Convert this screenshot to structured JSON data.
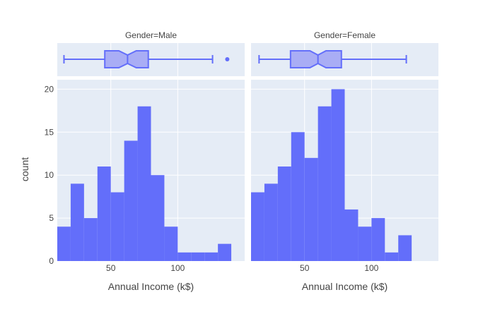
{
  "chart_data": {
    "type": "histogram",
    "ylabel": "count",
    "xlabel": "Annual Income (k$)",
    "x_tick_labels": [
      "50",
      "100"
    ],
    "y_tick_labels": [
      "0",
      "5",
      "10",
      "15",
      "20"
    ],
    "xlim": [
      10,
      150
    ],
    "ylim": [
      0,
      21.1
    ],
    "bin_width": 10,
    "bar_color": "#636efa",
    "box_fill": "#a9adf5",
    "panel_bg": "#e5ecf6",
    "grid": true,
    "facets": [
      {
        "title": "Gender=Male",
        "bins": [
          {
            "x0": 10,
            "x1": 20,
            "count": 4
          },
          {
            "x0": 20,
            "x1": 30,
            "count": 9
          },
          {
            "x0": 30,
            "x1": 40,
            "count": 5
          },
          {
            "x0": 40,
            "x1": 50,
            "count": 11
          },
          {
            "x0": 50,
            "x1": 60,
            "count": 8
          },
          {
            "x0": 60,
            "x1": 70,
            "count": 14
          },
          {
            "x0": 70,
            "x1": 80,
            "count": 18
          },
          {
            "x0": 80,
            "x1": 90,
            "count": 10
          },
          {
            "x0": 90,
            "x1": 100,
            "count": 4
          },
          {
            "x0": 100,
            "x1": 110,
            "count": 1
          },
          {
            "x0": 110,
            "x1": 120,
            "count": 1
          },
          {
            "x0": 120,
            "x1": 130,
            "count": 1
          },
          {
            "x0": 130,
            "x1": 140,
            "count": 2
          }
        ],
        "box": {
          "min": 15,
          "q1": 45.5,
          "median": 62.5,
          "q3": 78,
          "max": 126,
          "notch_low": 56,
          "notch_high": 69,
          "outliers": [
            137
          ]
        }
      },
      {
        "title": "Gender=Female",
        "bins": [
          {
            "x0": 10,
            "x1": 20,
            "count": 8
          },
          {
            "x0": 20,
            "x1": 30,
            "count": 9
          },
          {
            "x0": 30,
            "x1": 40,
            "count": 11
          },
          {
            "x0": 40,
            "x1": 50,
            "count": 15
          },
          {
            "x0": 50,
            "x1": 60,
            "count": 12
          },
          {
            "x0": 60,
            "x1": 70,
            "count": 18
          },
          {
            "x0": 70,
            "x1": 80,
            "count": 20
          },
          {
            "x0": 80,
            "x1": 90,
            "count": 6
          },
          {
            "x0": 90,
            "x1": 100,
            "count": 4
          },
          {
            "x0": 100,
            "x1": 110,
            "count": 5
          },
          {
            "x0": 110,
            "x1": 120,
            "count": 1
          },
          {
            "x0": 120,
            "x1": 130,
            "count": 3
          }
        ],
        "box": {
          "min": 16,
          "q1": 39.5,
          "median": 60,
          "q3": 77.5,
          "max": 126,
          "notch_low": 54,
          "notch_high": 66,
          "outliers": []
        }
      }
    ]
  }
}
